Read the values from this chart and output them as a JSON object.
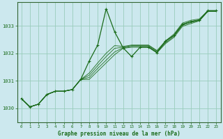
{
  "title": "Graphe pression niveau de la mer (hPa)",
  "background_color": "#cce8ee",
  "grid_color": "#99ccbb",
  "line_color": "#1a6b1a",
  "spine_color": "#336633",
  "xlim": [
    -0.5,
    23.5
  ],
  "ylim": [
    1029.5,
    1033.85
  ],
  "yticks": [
    1030,
    1031,
    1032,
    1033
  ],
  "xticks": [
    0,
    1,
    2,
    3,
    4,
    5,
    6,
    7,
    8,
    9,
    10,
    11,
    12,
    13,
    14,
    15,
    16,
    17,
    18,
    19,
    20,
    21,
    22,
    23
  ],
  "main_series": [
    1030.35,
    1030.05,
    1030.15,
    1030.5,
    1030.62,
    1030.62,
    1030.68,
    1031.05,
    1031.72,
    1032.3,
    1033.62,
    1032.78,
    1032.2,
    1031.88,
    1032.22,
    1032.22,
    1032.02,
    1032.45,
    1032.65,
    1033.05,
    1033.15,
    1033.2,
    1033.55,
    1033.55
  ],
  "band_lines": [
    [
      1030.35,
      1030.05,
      1030.15,
      1030.5,
      1030.62,
      1030.62,
      1030.68,
      1031.05,
      1031.05,
      1031.35,
      1031.65,
      1031.95,
      1032.18,
      1032.22,
      1032.22,
      1032.22,
      1032.02,
      1032.35,
      1032.58,
      1032.98,
      1033.08,
      1033.18,
      1033.52,
      1033.52
    ],
    [
      1030.35,
      1030.05,
      1030.15,
      1030.5,
      1030.62,
      1030.62,
      1030.68,
      1031.05,
      1031.12,
      1031.45,
      1031.75,
      1032.05,
      1032.2,
      1032.25,
      1032.25,
      1032.25,
      1032.05,
      1032.38,
      1032.62,
      1033.02,
      1033.12,
      1033.2,
      1033.53,
      1033.53
    ],
    [
      1030.35,
      1030.05,
      1030.15,
      1030.5,
      1030.62,
      1030.62,
      1030.68,
      1031.05,
      1031.2,
      1031.55,
      1031.88,
      1032.18,
      1032.22,
      1032.28,
      1032.28,
      1032.28,
      1032.08,
      1032.42,
      1032.66,
      1033.06,
      1033.16,
      1033.22,
      1033.54,
      1033.54
    ],
    [
      1030.35,
      1030.05,
      1030.15,
      1030.5,
      1030.62,
      1030.62,
      1030.68,
      1031.05,
      1031.28,
      1031.65,
      1032.0,
      1032.28,
      1032.25,
      1032.3,
      1032.3,
      1032.3,
      1032.1,
      1032.45,
      1032.7,
      1033.1,
      1033.2,
      1033.25,
      1033.55,
      1033.55
    ]
  ]
}
